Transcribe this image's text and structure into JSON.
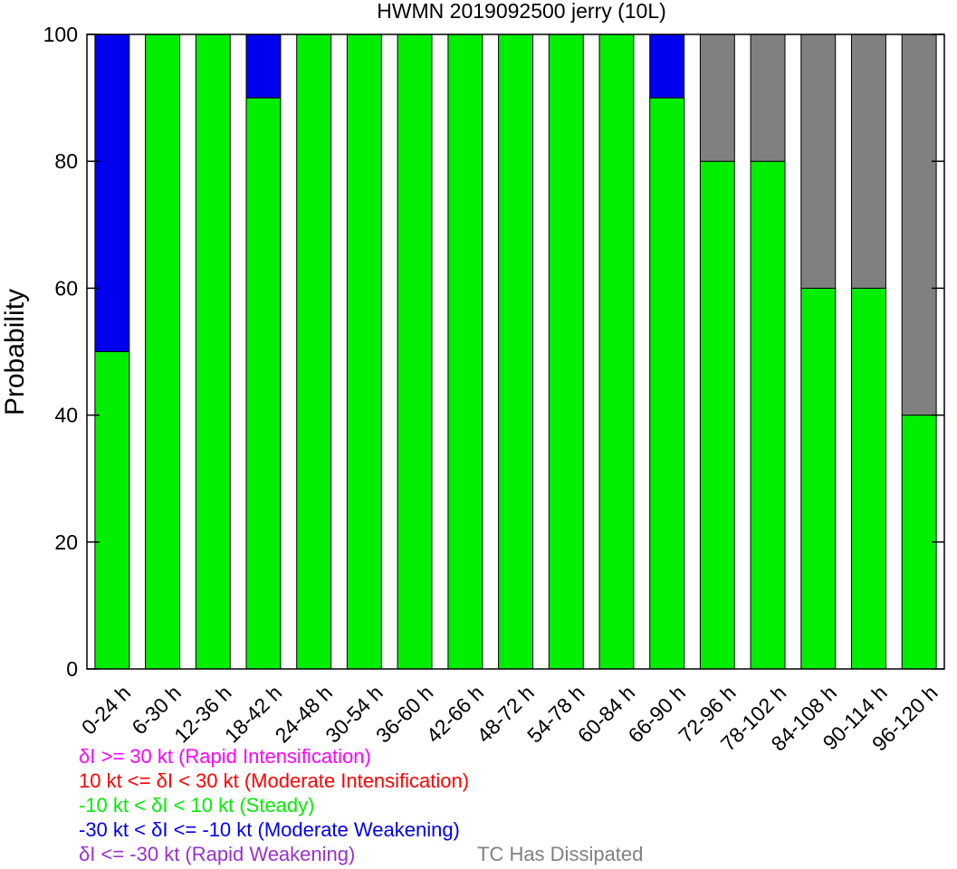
{
  "chart_data": {
    "type": "bar",
    "stacked": true,
    "title": "HWMN 2019092500 jerry (10L)",
    "xlabel": "",
    "ylabel": "Probability",
    "ylim": [
      0,
      100
    ],
    "yticks": [
      0,
      20,
      40,
      60,
      80,
      100
    ],
    "categories": [
      "0-24 h",
      "6-30 h",
      "12-36 h",
      "18-42 h",
      "24-48 h",
      "30-54 h",
      "36-60 h",
      "42-66 h",
      "48-72 h",
      "54-78 h",
      "60-84 h",
      "66-90 h",
      "72-96 h",
      "78-102 h",
      "84-108 h",
      "90-114 h",
      "96-120 h"
    ],
    "series": [
      {
        "key": "ri",
        "color": "#ff00ff",
        "values": [
          0,
          0,
          0,
          0,
          0,
          0,
          0,
          0,
          0,
          0,
          0,
          0,
          0,
          0,
          0,
          0,
          0
        ]
      },
      {
        "key": "mi",
        "color": "#ff0000",
        "values": [
          0,
          0,
          0,
          0,
          0,
          0,
          0,
          0,
          0,
          0,
          0,
          0,
          0,
          0,
          0,
          0,
          0
        ]
      },
      {
        "key": "steady",
        "color": "#00ee00",
        "values": [
          50,
          100,
          100,
          90,
          100,
          100,
          100,
          100,
          100,
          100,
          100,
          90,
          80,
          80,
          60,
          60,
          40
        ]
      },
      {
        "key": "mw",
        "color": "#0000ee",
        "values": [
          50,
          0,
          0,
          10,
          0,
          0,
          0,
          0,
          0,
          0,
          0,
          10,
          0,
          0,
          0,
          0,
          0
        ]
      },
      {
        "key": "rw",
        "color": "#9932cc",
        "values": [
          0,
          0,
          0,
          0,
          0,
          0,
          0,
          0,
          0,
          0,
          0,
          0,
          0,
          0,
          0,
          0,
          0
        ]
      },
      {
        "key": "dissipated",
        "color": "#808080",
        "values": [
          0,
          0,
          0,
          0,
          0,
          0,
          0,
          0,
          0,
          0,
          0,
          0,
          20,
          20,
          40,
          40,
          60
        ]
      }
    ],
    "stack_order": [
      "steady",
      "mw",
      "dissipated"
    ],
    "legend": {
      "placement": "bottom-left",
      "items": [
        {
          "label": "δI >= 30 kt (Rapid Intensification)",
          "color": "#ff00ff"
        },
        {
          "label": "10 kt <= δI < 30 kt (Moderate Intensification)",
          "color": "#ff0000"
        },
        {
          "label": "-10 kt < δI < 10 kt (Steady)",
          "color": "#00ee00"
        },
        {
          "label": "-30 kt < δI <= -10 kt (Moderate Weakening)",
          "color": "#0000ee"
        },
        {
          "label": "δI <= -30 kt (Rapid Weakening)",
          "color": "#9932cc"
        }
      ],
      "extra": {
        "label": "TC Has Dissipated",
        "color": "#808080"
      }
    },
    "grid": false
  }
}
